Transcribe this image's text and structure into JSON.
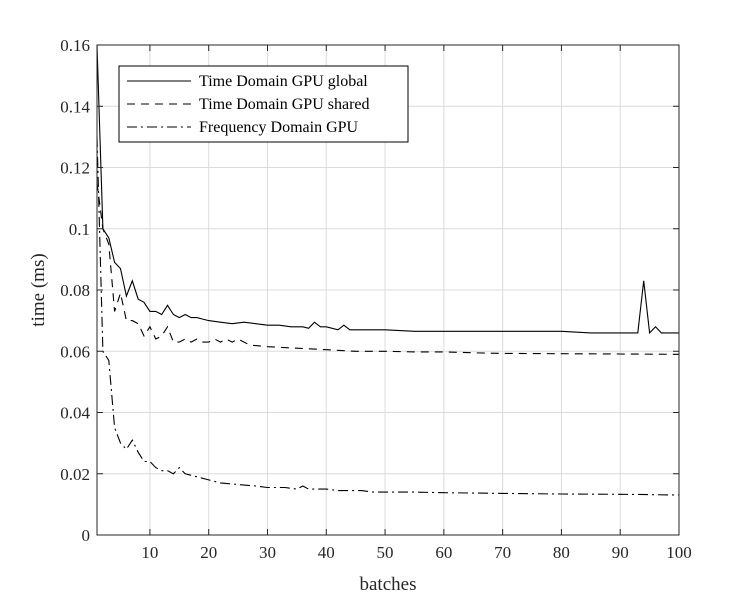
{
  "chart_data": {
    "type": "line",
    "xlabel": "batches",
    "ylabel": "time (ms)",
    "xlim": [
      1,
      100
    ],
    "ylim": [
      0,
      0.16
    ],
    "xticks": [
      10,
      20,
      30,
      40,
      50,
      60,
      70,
      80,
      90,
      100
    ],
    "yticks": [
      0,
      0.02,
      0.04,
      0.06,
      0.08,
      0.1,
      0.12,
      0.14,
      0.16
    ],
    "xtick_labels": [
      "10",
      "20",
      "30",
      "40",
      "50",
      "60",
      "70",
      "80",
      "90",
      "100"
    ],
    "ytick_labels": [
      "0",
      "0.02",
      "0.04",
      "0.06",
      "0.08",
      "0.1",
      "0.12",
      "0.14",
      "0.16"
    ],
    "grid": true,
    "legend_position": "top-left",
    "series": [
      {
        "name": "Time Domain GPU global",
        "dash": "solid",
        "x": [
          1,
          2,
          3,
          4,
          5,
          6,
          7,
          8,
          9,
          10,
          11,
          12,
          13,
          14,
          15,
          16,
          17,
          18,
          19,
          20,
          22,
          24,
          26,
          28,
          30,
          32,
          34,
          36,
          37,
          38,
          39,
          40,
          42,
          43,
          44,
          46,
          48,
          50,
          55,
          60,
          65,
          70,
          75,
          80,
          85,
          90,
          92,
          93,
          94,
          95,
          96,
          97,
          98,
          100
        ],
        "y": [
          0.16,
          0.1,
          0.097,
          0.089,
          0.087,
          0.078,
          0.083,
          0.077,
          0.076,
          0.073,
          0.073,
          0.072,
          0.075,
          0.072,
          0.071,
          0.072,
          0.071,
          0.071,
          0.0705,
          0.07,
          0.0695,
          0.069,
          0.0695,
          0.069,
          0.0685,
          0.0685,
          0.068,
          0.068,
          0.0675,
          0.0695,
          0.068,
          0.068,
          0.067,
          0.0685,
          0.067,
          0.067,
          0.067,
          0.067,
          0.0665,
          0.0665,
          0.0665,
          0.0665,
          0.0665,
          0.0665,
          0.066,
          0.066,
          0.066,
          0.066,
          0.083,
          0.066,
          0.068,
          0.066,
          0.066,
          0.066
        ]
      },
      {
        "name": "Time Domain GPU shared",
        "dash": "dashed",
        "x": [
          1,
          2,
          3,
          4,
          5,
          6,
          7,
          8,
          9,
          10,
          11,
          12,
          13,
          14,
          15,
          16,
          17,
          18,
          19,
          20,
          21,
          22,
          23,
          24,
          25,
          27,
          30,
          35,
          40,
          45,
          50,
          55,
          60,
          65,
          70,
          80,
          90,
          100
        ],
        "y": [
          0.115,
          0.1,
          0.095,
          0.073,
          0.079,
          0.07,
          0.07,
          0.069,
          0.065,
          0.068,
          0.064,
          0.065,
          0.068,
          0.063,
          0.063,
          0.064,
          0.063,
          0.064,
          0.063,
          0.063,
          0.064,
          0.063,
          0.064,
          0.063,
          0.064,
          0.062,
          0.0615,
          0.061,
          0.0605,
          0.06,
          0.06,
          0.0598,
          0.0598,
          0.0595,
          0.0593,
          0.0592,
          0.0591,
          0.059
        ]
      },
      {
        "name": "Frequency Domain  GPU",
        "dash": "dashdot",
        "x": [
          1,
          2,
          3,
          4,
          5,
          6,
          7,
          8,
          9,
          10,
          11,
          12,
          13,
          14,
          15,
          16,
          18,
          20,
          22,
          25,
          28,
          30,
          33,
          35,
          36,
          37,
          38,
          40,
          42,
          44,
          46,
          48,
          50,
          55,
          60,
          70,
          80,
          90,
          95,
          98,
          100
        ],
        "y": [
          0.13,
          0.06,
          0.057,
          0.035,
          0.03,
          0.028,
          0.031,
          0.027,
          0.024,
          0.024,
          0.022,
          0.021,
          0.021,
          0.02,
          0.022,
          0.02,
          0.019,
          0.018,
          0.017,
          0.0165,
          0.016,
          0.0155,
          0.0155,
          0.015,
          0.016,
          0.015,
          0.015,
          0.015,
          0.0145,
          0.0145,
          0.0145,
          0.014,
          0.014,
          0.014,
          0.0138,
          0.0136,
          0.0134,
          0.0133,
          0.0132,
          0.0131,
          0.0131
        ]
      }
    ]
  }
}
